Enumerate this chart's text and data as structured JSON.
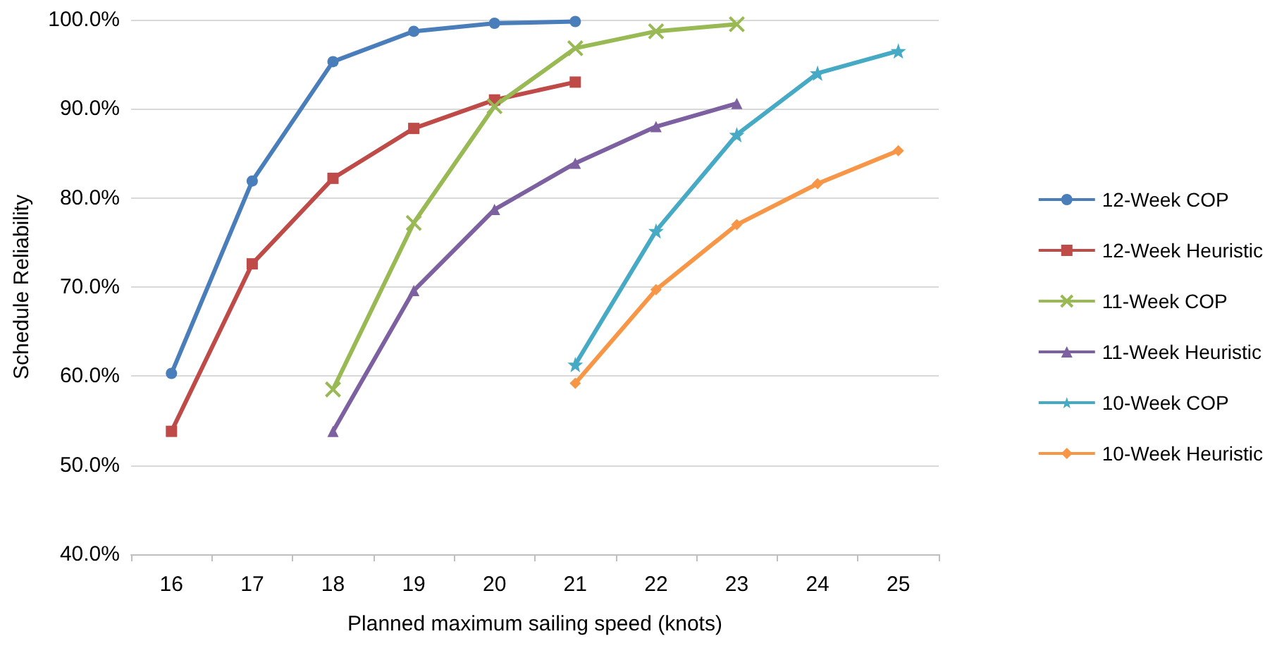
{
  "chart_data": {
    "type": "line",
    "xlabel": "Planned maximum sailing speed (knots)",
    "ylabel": "Schedule Reliability",
    "categories": [
      "16",
      "17",
      "18",
      "19",
      "20",
      "21",
      "22",
      "23",
      "24",
      "25"
    ],
    "ylim": [
      40,
      100
    ],
    "yticks": [
      {
        "value": 40,
        "label": "40.0%"
      },
      {
        "value": 50,
        "label": "50.0%"
      },
      {
        "value": 60,
        "label": "60.0%"
      },
      {
        "value": 70,
        "label": "70.0%"
      },
      {
        "value": 80,
        "label": "80.0%"
      },
      {
        "value": 90,
        "label": "90.0%"
      },
      {
        "value": 100,
        "label": "100.0%"
      }
    ],
    "grid": "y",
    "legend": "right",
    "series": [
      {
        "name": "12-Week COP",
        "color": "#4a7ebb",
        "marker": "circle",
        "values": [
          60.3,
          81.9,
          95.3,
          98.7,
          99.6,
          99.8,
          null,
          null,
          null,
          null
        ]
      },
      {
        "name": "12-Week Heuristic",
        "color": "#be4b48",
        "marker": "square",
        "values": [
          53.8,
          72.6,
          82.2,
          87.8,
          91.0,
          93.0,
          null,
          null,
          null,
          null
        ]
      },
      {
        "name": "11-Week COP",
        "color": "#98b954",
        "marker": "cross",
        "values": [
          null,
          null,
          58.5,
          77.2,
          90.3,
          96.8,
          98.7,
          99.5,
          null,
          null
        ]
      },
      {
        "name": "11-Week Heuristic",
        "color": "#7d60a0",
        "marker": "triangle",
        "values": [
          null,
          null,
          53.8,
          69.6,
          78.7,
          83.9,
          88.0,
          90.6,
          null,
          null
        ]
      },
      {
        "name": "10-Week COP",
        "color": "#46aac5",
        "marker": "star",
        "values": [
          null,
          null,
          null,
          null,
          null,
          61.3,
          76.3,
          87.1,
          94.0,
          96.5
        ]
      },
      {
        "name": "10-Week Heuristic",
        "color": "#f79646",
        "marker": "diamond",
        "values": [
          null,
          null,
          null,
          null,
          null,
          59.2,
          69.7,
          77.0,
          81.6,
          85.3
        ]
      }
    ]
  }
}
